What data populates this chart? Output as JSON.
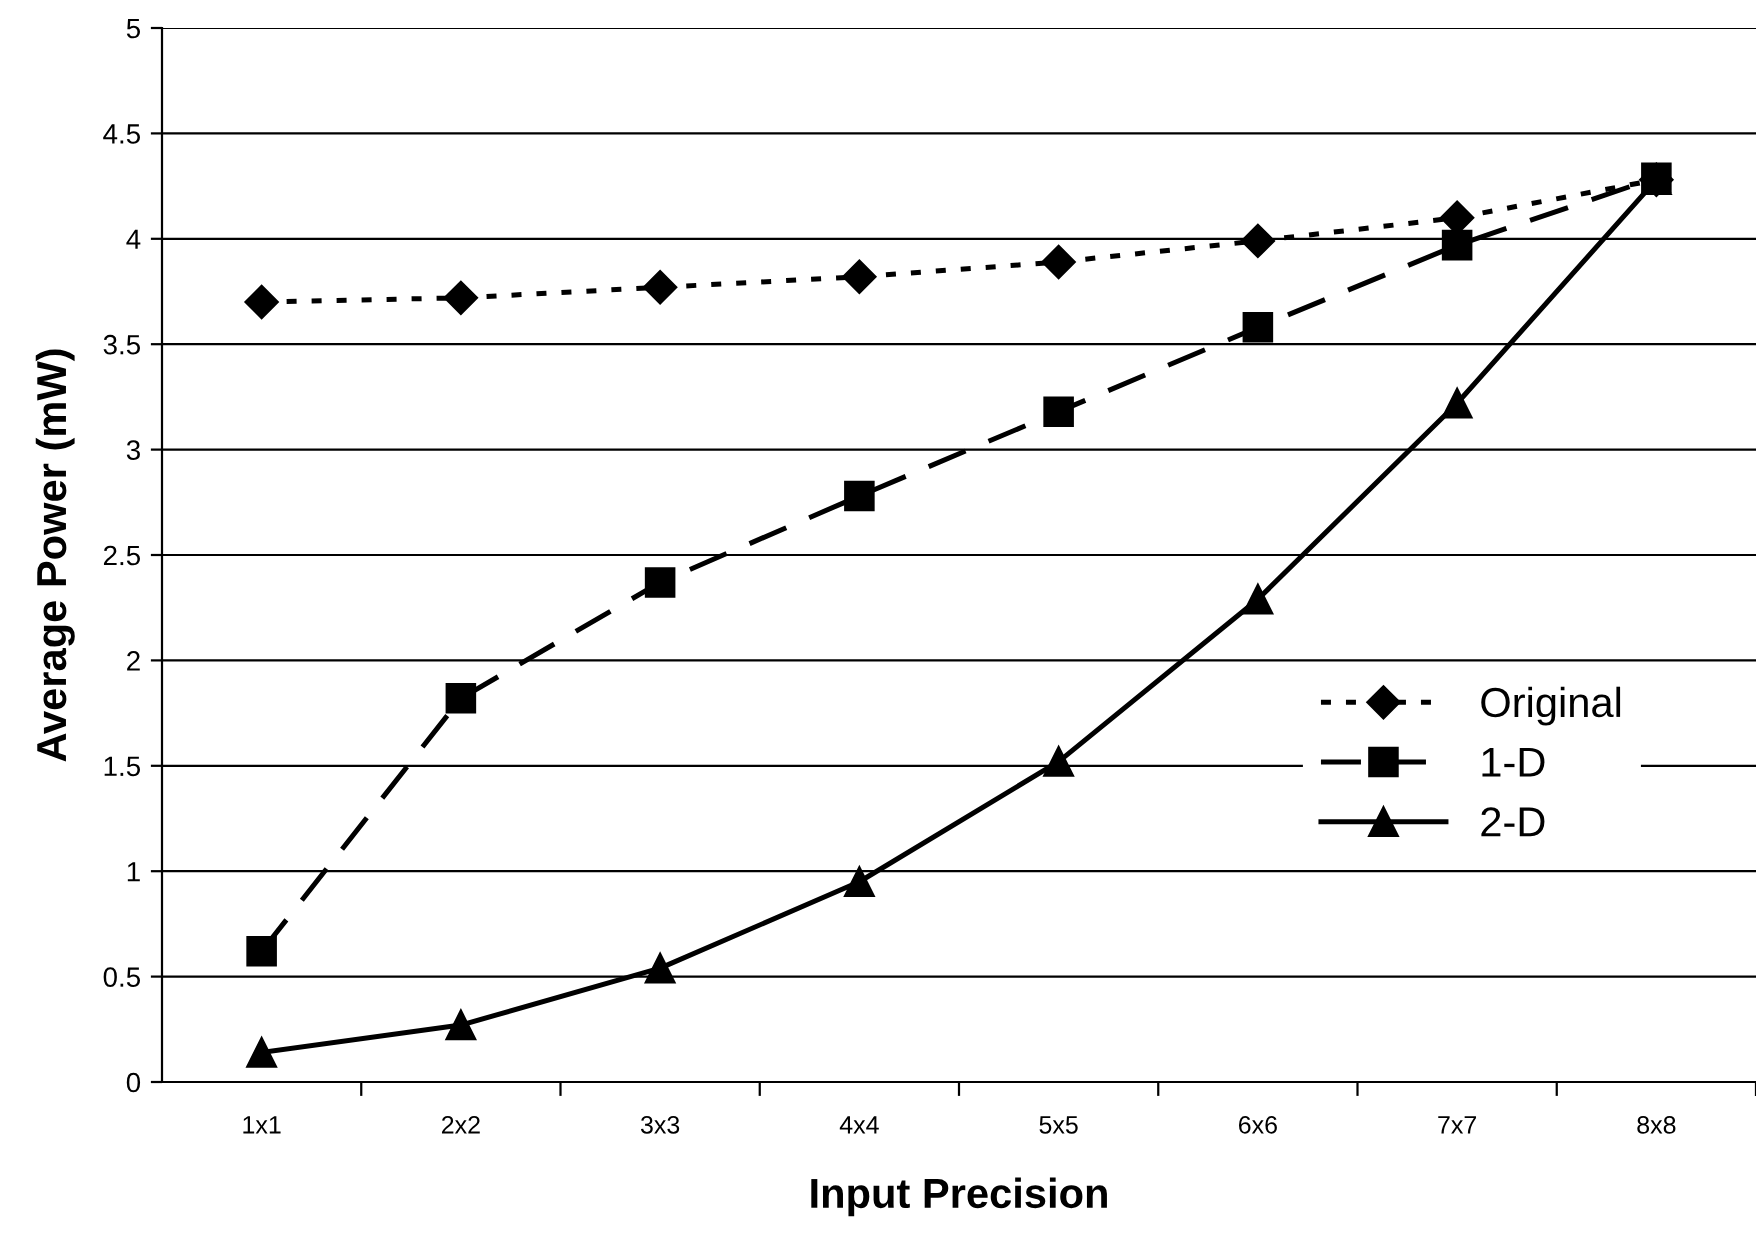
{
  "chart_data": {
    "type": "line",
    "xlabel": "Input Precision",
    "ylabel": "Average Power (mW)",
    "categories": [
      "1x1",
      "2x2",
      "3x3",
      "4x4",
      "5x5",
      "6x6",
      "7x7",
      "8x8"
    ],
    "series": [
      {
        "name": "Original",
        "color": "#000000",
        "marker": "diamond",
        "line_style": "dotted",
        "values": [
          3.7,
          3.72,
          3.77,
          3.82,
          3.89,
          3.99,
          4.1,
          4.28
        ]
      },
      {
        "name": "1-D",
        "color": "#000000",
        "marker": "square",
        "line_style": "dashed",
        "values": [
          0.62,
          1.82,
          2.37,
          2.78,
          3.18,
          3.58,
          3.97,
          4.29
        ]
      },
      {
        "name": "2-D",
        "color": "#000000",
        "marker": "triangle",
        "line_style": "solid",
        "values": [
          0.14,
          0.27,
          0.54,
          0.95,
          1.52,
          2.29,
          3.22,
          4.28
        ]
      }
    ],
    "ylim": [
      0,
      5
    ],
    "yticks": [
      0,
      0.5,
      1,
      1.5,
      2,
      2.5,
      3,
      3.5,
      4,
      4.5,
      5
    ],
    "grid": "y",
    "legend": "right"
  }
}
